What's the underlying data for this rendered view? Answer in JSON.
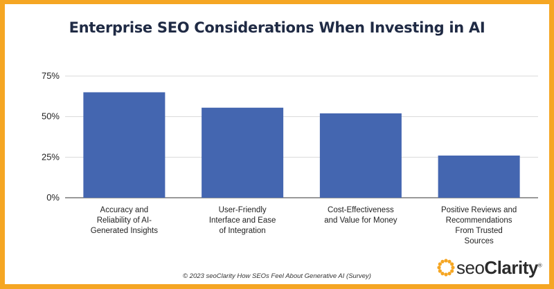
{
  "brand": {
    "name_prefix": "seo",
    "name_suffix": "Clarity",
    "trademark": "®",
    "accent_color": "#f5a623"
  },
  "footer": {
    "credit": "© 2023 seoClarity  How SEOs Feel About Generative AI (Survey)"
  },
  "chart_data": {
    "type": "bar",
    "title": "Enterprise SEO Considerations When Investing in AI",
    "xlabel": "",
    "ylabel": "",
    "ylim": [
      0,
      75
    ],
    "yticks": [
      0,
      25,
      50,
      75
    ],
    "ytick_labels": [
      "0%",
      "25%",
      "50%",
      "75%"
    ],
    "grid": true,
    "bar_color": "#4466b0",
    "categories": [
      "Accuracy and Reliability of AI-Generated Insights",
      "User-Friendly Interface and Ease of Integration",
      "Cost-Effectiveness and Value for Money",
      "Positive Reviews and Recommendations From Trusted Sources"
    ],
    "category_label_lines": [
      [
        "Accuracy and",
        "Reliability of AI-",
        "Generated Insights"
      ],
      [
        "User-Friendly",
        "Interface and Ease",
        "of Integration"
      ],
      [
        "Cost-Effectiveness",
        "and Value for Money"
      ],
      [
        "Positive Reviews and",
        "Recommendations",
        "From Trusted",
        "Sources"
      ]
    ],
    "values": [
      65,
      55.5,
      52,
      26
    ]
  }
}
